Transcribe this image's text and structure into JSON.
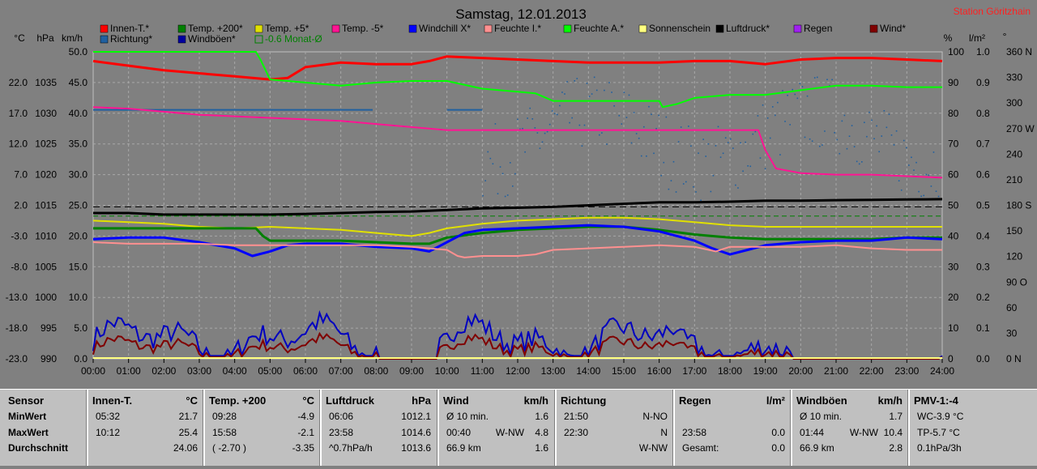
{
  "title": "Samstag, 12.01.2013",
  "station": "Station Göritzhain",
  "legend": [
    {
      "name": "Innen-T.*",
      "color": "#ff0000"
    },
    {
      "name": "Temp. +200*",
      "color": "#008000"
    },
    {
      "name": "Temp. +5*",
      "color": "#e0e000"
    },
    {
      "name": "Temp. -5*",
      "color": "#ff1493"
    },
    {
      "name": "Windchill X*",
      "color": "#0000ff"
    },
    {
      "name": "Feuchte I.*",
      "color": "#ff9090"
    },
    {
      "name": "Feuchte A.*",
      "color": "#00ff00"
    },
    {
      "name": "Sonnenschein",
      "color": "#ffff80"
    },
    {
      "name": "Luftdruck*",
      "color": "#000000"
    },
    {
      "name": "Regen",
      "color": "#a020f0"
    },
    {
      "name": "Wind*",
      "color": "#800000"
    },
    {
      "name": "Richtung*",
      "color": "#2060a0"
    },
    {
      "name": "Windböen*",
      "color": "#0000a0"
    },
    {
      "name": "-0.6 Monat-Ø",
      "color": "#008000",
      "dashed": true
    }
  ],
  "axis_units": {
    "c": "°C",
    "hpa": "hPa",
    "kmh": "km/h",
    "pct": "%",
    "rain": "l/m²",
    "deg": "°"
  },
  "chart_data": {
    "type": "line",
    "x_ticks": [
      "00:00",
      "01:00",
      "02:00",
      "03:00",
      "04:00",
      "05:00",
      "06:00",
      "07:00",
      "08:00",
      "09:00",
      "10:00",
      "11:00",
      "12:00",
      "13:00",
      "14:00",
      "15:00",
      "16:00",
      "17:00",
      "18:00",
      "19:00",
      "20:00",
      "21:00",
      "22:00",
      "23:00",
      "24:00"
    ],
    "axes": {
      "c": {
        "ticks": [
          "22.0",
          "17.0",
          "12.0",
          "7.0",
          "2.0",
          "-3.0",
          "-8.0",
          "-13.0",
          "-18.0",
          "-23.0"
        ],
        "range": [
          -23,
          27
        ]
      },
      "hpa": {
        "ticks": [
          "1035",
          "1030",
          "1025",
          "1020",
          "1015",
          "1010",
          "1005",
          "1000",
          "995",
          "990"
        ],
        "range": [
          990,
          1040
        ]
      },
      "kmh": {
        "ticks": [
          "50.0",
          "45.0",
          "40.0",
          "35.0",
          "30.0",
          "25.0",
          "20.0",
          "15.0",
          "10.0",
          "5.0",
          "0.0"
        ],
        "range": [
          0,
          50
        ]
      },
      "pct": {
        "ticks": [
          "100",
          "90",
          "80",
          "70",
          "60",
          "50",
          "40",
          "30",
          "20",
          "10",
          "0"
        ],
        "range": [
          0,
          100
        ]
      },
      "rain": {
        "ticks": [
          "1.0",
          "0.9",
          "0.8",
          "0.7",
          "0.6",
          "0.5",
          "0.4",
          "0.3",
          "0.2",
          "0.1",
          "0.0"
        ],
        "range": [
          0,
          1
        ]
      },
      "deg": {
        "ticks": [
          "360 N",
          "330",
          "300",
          "270 W",
          "240",
          "210",
          "180 S",
          "150",
          "120",
          "90 O",
          "60",
          "30",
          "0 N"
        ],
        "range": [
          0,
          360
        ]
      }
    },
    "series": [
      {
        "name": "Innen-T.*",
        "axis": "pct",
        "color": "#ff0000",
        "width": 3,
        "x": [
          0,
          1,
          2,
          3,
          4,
          5,
          5.5,
          6,
          7,
          8,
          9,
          9.5,
          10,
          11,
          12,
          13,
          14,
          15,
          16,
          17,
          18,
          19,
          20,
          21,
          22,
          23,
          24
        ],
        "y": [
          97,
          95.5,
          94,
          93,
          92,
          91,
          91.5,
          95,
          96.5,
          96,
          96,
          97,
          98.5,
          98,
          97.5,
          97,
          96.5,
          96.5,
          96.5,
          97,
          97,
          96,
          97.5,
          98,
          98,
          97.5,
          97
        ]
      },
      {
        "name": "Feuchte A.*",
        "axis": "pct",
        "color": "#00ff00",
        "width": 2,
        "x": [
          0,
          4.6,
          4.75,
          5,
          6,
          7,
          8,
          9,
          10,
          11,
          12,
          12.5,
          13,
          14,
          15,
          16,
          16.1,
          16.5,
          17,
          18,
          19,
          20,
          21,
          22,
          23,
          24
        ],
        "y": [
          100,
          100,
          97,
          91,
          90,
          89,
          90,
          90.5,
          90.5,
          88,
          87,
          86.5,
          84,
          84,
          84,
          84,
          82,
          83,
          85,
          86,
          86,
          87.5,
          89,
          89,
          88.5,
          88.5
        ]
      },
      {
        "name": "Temp. -5*",
        "axis": "pct",
        "color": "#ff1493",
        "width": 2,
        "x": [
          0,
          1,
          2,
          3,
          4,
          5,
          6,
          7,
          8,
          9,
          10,
          11,
          12,
          13,
          14,
          15,
          16,
          17,
          18,
          18.8,
          19,
          19.3,
          20,
          21,
          22,
          23,
          24
        ],
        "y": [
          82,
          81.5,
          80.5,
          79.5,
          79,
          78.5,
          78,
          77.5,
          76.5,
          75.5,
          74.5,
          74.5,
          74.5,
          74.5,
          74.5,
          74.5,
          74.5,
          74.5,
          74.5,
          74.5,
          68,
          62,
          60.5,
          60,
          60,
          59.5,
          59
        ]
      },
      {
        "name": "Luftdruck*",
        "axis": "pct",
        "color": "#000000",
        "width": 3,
        "x": [
          0,
          1,
          2,
          3,
          4,
          5,
          6,
          7,
          8,
          9,
          10,
          11,
          12,
          13,
          14,
          15,
          16,
          17,
          18,
          19,
          20,
          21,
          22,
          23,
          24
        ],
        "y": [
          47.5,
          47.5,
          47,
          47,
          47,
          47,
          47.2,
          47.5,
          47.8,
          48,
          48.5,
          49,
          49.2,
          49.5,
          50,
          50.5,
          51,
          51,
          51.2,
          51.5,
          51.5,
          51.7,
          51.8,
          51.9,
          52
        ]
      },
      {
        "name": "Temp. +5*",
        "axis": "pct",
        "color": "#e0e000",
        "width": 2,
        "x": [
          0,
          1,
          2,
          3,
          4,
          5,
          6,
          7,
          8,
          9,
          9.5,
          10,
          11,
          12,
          13,
          14,
          15,
          16,
          17,
          18,
          19,
          20,
          21,
          22,
          23,
          24
        ],
        "y": [
          45,
          44.5,
          44,
          43,
          42.5,
          43,
          42.5,
          42,
          41,
          40,
          41,
          42.5,
          44,
          45,
          45.5,
          46,
          46,
          45.5,
          44.5,
          43.5,
          43,
          43,
          43,
          43,
          43,
          43
        ]
      },
      {
        "name": "Temp. +200*",
        "axis": "pct",
        "color": "#008000",
        "width": 3,
        "x": [
          0,
          1,
          2,
          3,
          4,
          4.6,
          4.8,
          5,
          6,
          7,
          8,
          9,
          9.5,
          10,
          11,
          12,
          13,
          14,
          15,
          16,
          17,
          18,
          19,
          20,
          21,
          22,
          23,
          24
        ],
        "y": [
          42.5,
          42.5,
          42.5,
          42.5,
          42.5,
          42.5,
          40,
          38.5,
          38.5,
          38.5,
          38,
          37.5,
          37.5,
          39.5,
          41,
          42,
          42.5,
          43,
          43,
          42,
          40.5,
          39.5,
          39,
          39,
          39,
          39,
          39.5,
          39.5
        ]
      },
      {
        "name": "Windchill X*",
        "axis": "pct",
        "color": "#0000ff",
        "width": 3,
        "x": [
          0,
          1,
          2,
          3,
          4,
          4.5,
          5,
          5.5,
          6,
          7,
          8,
          9,
          9.5,
          10,
          10.5,
          11,
          12,
          13,
          14,
          15,
          16,
          17,
          17.5,
          18,
          18.5,
          19,
          20,
          21,
          22,
          23,
          24
        ],
        "y": [
          39,
          39.5,
          39.5,
          38,
          36,
          33.5,
          35,
          37,
          37.5,
          37.5,
          36.5,
          36,
          35,
          38,
          41,
          42,
          42.5,
          43,
          43.5,
          43,
          41.5,
          38.5,
          36,
          34,
          35.5,
          37,
          38,
          38.5,
          38.5,
          39.5,
          39
        ]
      },
      {
        "name": "Feuchte I.*",
        "axis": "pct",
        "color": "#ff9090",
        "width": 2,
        "x": [
          0,
          1,
          2,
          3,
          4,
          5,
          6,
          7,
          8,
          9,
          10,
          10.3,
          10.5,
          11,
          12,
          12.5,
          13,
          14,
          15,
          16,
          17,
          17.6,
          18,
          19,
          20,
          21,
          22,
          23,
          24
        ],
        "y": [
          38,
          37.5,
          37.5,
          37.5,
          37,
          37,
          37,
          37,
          37,
          36.5,
          35.5,
          33.5,
          33,
          33.5,
          33.5,
          34,
          35.5,
          36,
          36.5,
          37,
          36.5,
          35,
          36.5,
          36.5,
          36.5,
          37,
          36,
          35.5,
          35.5
        ]
      },
      {
        "name": "-0.6 Monat-Ø",
        "axis": "pct",
        "color": "#008000",
        "width": 1,
        "dash": "6,4",
        "x": [
          0,
          24
        ],
        "y": [
          46.5,
          46.5
        ]
      },
      {
        "name": "",
        "axis": "pct",
        "color": "#000000",
        "width": 1,
        "dash": "8,5",
        "x": [
          0,
          24
        ],
        "y": [
          49.5,
          49.5
        ]
      }
    ],
    "wind": {
      "axis": "kmh",
      "name": "Wind*",
      "color": "#800000",
      "gust_name": "Windböen*",
      "gust_color": "#0000c0",
      "calm_ranges": [
        [
          8,
          9.7
        ],
        [
          19.8,
          24
        ]
      ]
    },
    "direction": {
      "name": "Richtung*",
      "color": "#2060a0",
      "axis": "deg",
      "segments": [
        {
          "x": [
            0,
            7.9
          ],
          "y": [
            292,
            292
          ]
        },
        {
          "x": [
            10,
            11
          ],
          "y": [
            292,
            292
          ]
        }
      ],
      "scatter_from": 11.0
    }
  },
  "table": [
    {
      "title": "Sensor",
      "unit": "",
      "rows": [
        [
          "MinWert",
          "",
          ""
        ],
        [
          "MaxWert",
          "",
          ""
        ],
        [
          "Durchschnitt",
          "",
          ""
        ]
      ],
      "labels": true
    },
    {
      "title": "Innen-T.",
      "unit": "°C",
      "rows": [
        [
          "05:32",
          "",
          "21.7"
        ],
        [
          "10:12",
          "",
          "25.4"
        ],
        [
          "",
          "",
          "24.06"
        ]
      ]
    },
    {
      "title": "Temp. +200",
      "unit": "°C",
      "rows": [
        [
          "09:28",
          "",
          "-4.9"
        ],
        [
          "15:58",
          "",
          "-2.1"
        ],
        [
          "( -2.70 )",
          "",
          "-3.35"
        ]
      ]
    },
    {
      "title": "Luftdruck",
      "unit": "hPa",
      "rows": [
        [
          "06:06",
          "",
          "1012.1"
        ],
        [
          "23:58",
          "",
          "1014.6"
        ],
        [
          "^0.7hPa/h",
          "",
          "1013.6"
        ]
      ]
    },
    {
      "title": "Wind",
      "unit": "km/h",
      "rows": [
        [
          "Ø 10 min.",
          "",
          "1.6"
        ],
        [
          "00:40",
          "W-NW",
          "4.8"
        ],
        [
          "66.9 km",
          "",
          "1.6"
        ]
      ]
    },
    {
      "title": "Richtung",
      "unit": "",
      "rows": [
        [
          "21:50",
          "",
          "N-NO"
        ],
        [
          "22:30",
          "",
          "N"
        ],
        [
          "",
          "",
          "W-NW"
        ]
      ]
    },
    {
      "title": "Regen",
      "unit": "l/m²",
      "rows": [
        [
          "",
          "",
          ""
        ],
        [
          "23:58",
          "",
          "0.0"
        ],
        [
          "Gesamt:",
          "",
          "0.0"
        ]
      ]
    },
    {
      "title": "Windböen",
      "unit": "km/h",
      "rows": [
        [
          "Ø 10 min.",
          "",
          "1.7"
        ],
        [
          "01:44",
          "W-NW",
          "10.4"
        ],
        [
          "66.9 km",
          "",
          "2.8"
        ]
      ]
    },
    {
      "title": "PMV-1:-4",
      "unit": "",
      "rows": [
        [
          "WC-3.9 °C",
          "",
          ""
        ],
        [
          "TP-5.7 °C",
          "",
          ""
        ],
        [
          "0.1hPa/3h",
          "",
          ""
        ]
      ]
    }
  ]
}
